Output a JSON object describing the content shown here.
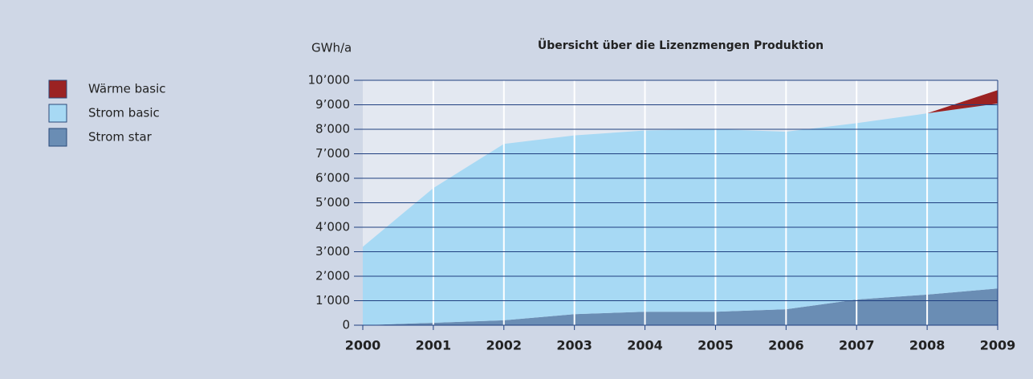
{
  "chart_data": {
    "type": "stacked_area",
    "title": "Übersicht über die Lizenzmengen Produktion",
    "y_label": "GWh/a",
    "categories": [
      "2000",
      "2001",
      "2002",
      "2003",
      "2004",
      "2005",
      "2006",
      "2007",
      "2008",
      "2009"
    ],
    "series": [
      {
        "name": "Wärme basic",
        "color": "#9b2222",
        "values": [
          0,
          0,
          0,
          0,
          0,
          0,
          0,
          0,
          0,
          550
        ]
      },
      {
        "name": "Strom basic",
        "color": "#a7d9f4",
        "values": [
          3200,
          5500,
          7200,
          7300,
          7400,
          7450,
          7250,
          7200,
          7400,
          7550
        ]
      },
      {
        "name": "Strom star",
        "color": "#6a8db4",
        "values": [
          0,
          100,
          200,
          450,
          550,
          550,
          650,
          1050,
          1250,
          1500
        ]
      }
    ],
    "ylim": [
      0,
      10000
    ],
    "yticks": [
      0,
      {
        "value": 1000,
        "label": "1’000"
      },
      {
        "value": 2000,
        "label": "2’000"
      },
      {
        "value": 3000,
        "label": "3’000"
      },
      {
        "value": 4000,
        "label": "4’000"
      },
      {
        "value": 5000,
        "label": "5’000"
      },
      {
        "value": 6000,
        "label": "6’000"
      },
      {
        "value": 7000,
        "label": "7’000"
      },
      {
        "value": 8000,
        "label": "8’000"
      },
      {
        "value": 9000,
        "label": "9’000"
      },
      {
        "value": 10000,
        "label": "10’000"
      }
    ],
    "grid": true,
    "legend": "left"
  }
}
